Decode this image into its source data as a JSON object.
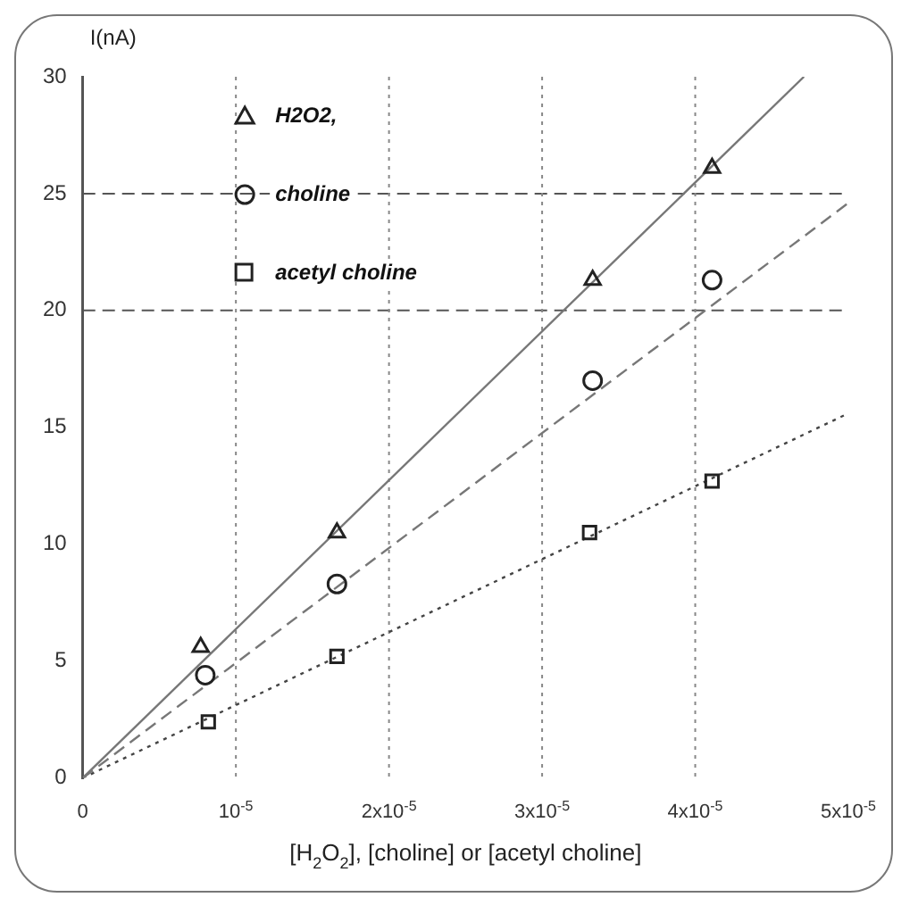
{
  "chart_data": {
    "type": "scatter",
    "xlabel": "[H$_{2}$O$_{2}$], [choline] or [acetyl choline]",
    "ylabel": "I(nA)",
    "xlim": [
      0,
      5e-05
    ],
    "xticks": [
      0,
      {
        "value": 1e-05,
        "label": "10$^{-5}$"
      },
      {
        "value": 2e-05,
        "label": "2x10$^{-5}$"
      },
      {
        "value": 3e-05,
        "label": "3x10$^{-5}$"
      },
      {
        "value": 4e-05,
        "label": "4x10$^{-5}$"
      },
      {
        "value": 5e-05,
        "label": "5x10$^{-5}$"
      }
    ],
    "ylim": [
      0,
      30
    ],
    "yticks": [
      0,
      5,
      10,
      15,
      20,
      25,
      30
    ],
    "grid": false,
    "legend": "top left",
    "series": [
      {
        "name": "H2O2,",
        "type": "scatter",
        "marker": "triangle",
        "color": "#222222",
        "x": [
          7.7e-06,
          1.66e-05,
          3.33e-05,
          4.11e-05
        ],
        "values": [
          5.6,
          10.5,
          21.3,
          26.1
        ]
      },
      {
        "name": "choline",
        "type": "scatter",
        "marker": "circle",
        "color": "#222222",
        "x": [
          8e-06,
          1.66e-05,
          3.33e-05,
          4.11e-05
        ],
        "values": [
          4.4,
          8.3,
          17,
          21.3
        ]
      },
      {
        "name": "acetyl choline",
        "type": "scatter",
        "marker": "square",
        "color": "#222222",
        "x": [
          8.2e-06,
          1.66e-05,
          3.31e-05,
          4.11e-05
        ],
        "values": [
          2.4,
          5.2,
          10.5,
          12.7
        ]
      },
      {
        "type": "line",
        "marker": "none",
        "line_style": "solid",
        "color": "#777777",
        "x": [
          0,
          4.71e-05
        ],
        "values": [
          0,
          30
        ]
      },
      {
        "type": "line",
        "marker": "none",
        "line_style": "dashed",
        "color": "#777777",
        "x": [
          0,
          5e-05
        ],
        "values": [
          0,
          24.6
        ]
      },
      {
        "type": "line",
        "marker": "none",
        "line_style": "dotted",
        "color": "#444444",
        "x": [
          0,
          5e-05
        ],
        "values": [
          0,
          15.6
        ]
      }
    ],
    "ref_lines": [
      {
        "axis": "y",
        "value": 25,
        "line_style": "dashed",
        "color": "#555555"
      },
      {
        "axis": "y",
        "value": 20,
        "line_style": "dashed",
        "color": "#555555"
      },
      {
        "axis": "x",
        "value": 1e-05,
        "line_style": "dotted",
        "color": "#888888"
      },
      {
        "axis": "x",
        "value": 2e-05,
        "line_style": "dotted",
        "color": "#888888"
      },
      {
        "axis": "x",
        "value": 3e-05,
        "line_style": "dotted",
        "color": "#888888"
      },
      {
        "axis": "x",
        "value": 4e-05,
        "line_style": "dotted",
        "color": "#888888"
      }
    ]
  }
}
